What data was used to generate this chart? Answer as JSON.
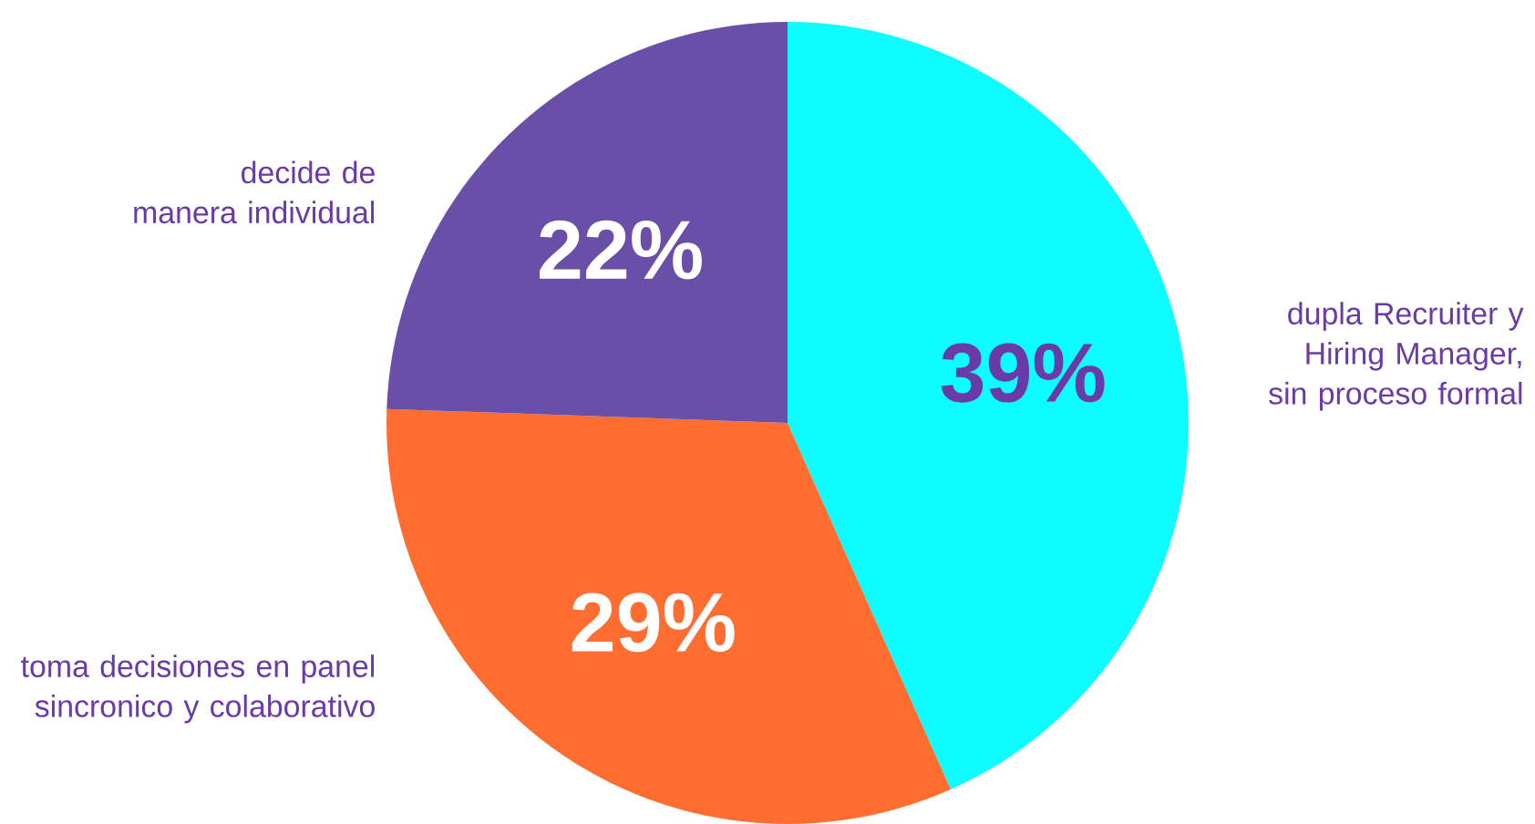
{
  "chart_data": {
    "type": "pie",
    "categories": [
      "dupla Recruiter y Hiring Manager, sin proceso formal",
      "toma decisiones en panel sincronico y colaborativo",
      "decide de manera individual"
    ],
    "values": [
      39,
      29,
      22
    ],
    "colors": [
      "#0dfcff",
      "#ff6e30",
      "#6a4fa8"
    ],
    "value_labels": [
      "39%",
      "29%",
      "22%"
    ]
  }
}
